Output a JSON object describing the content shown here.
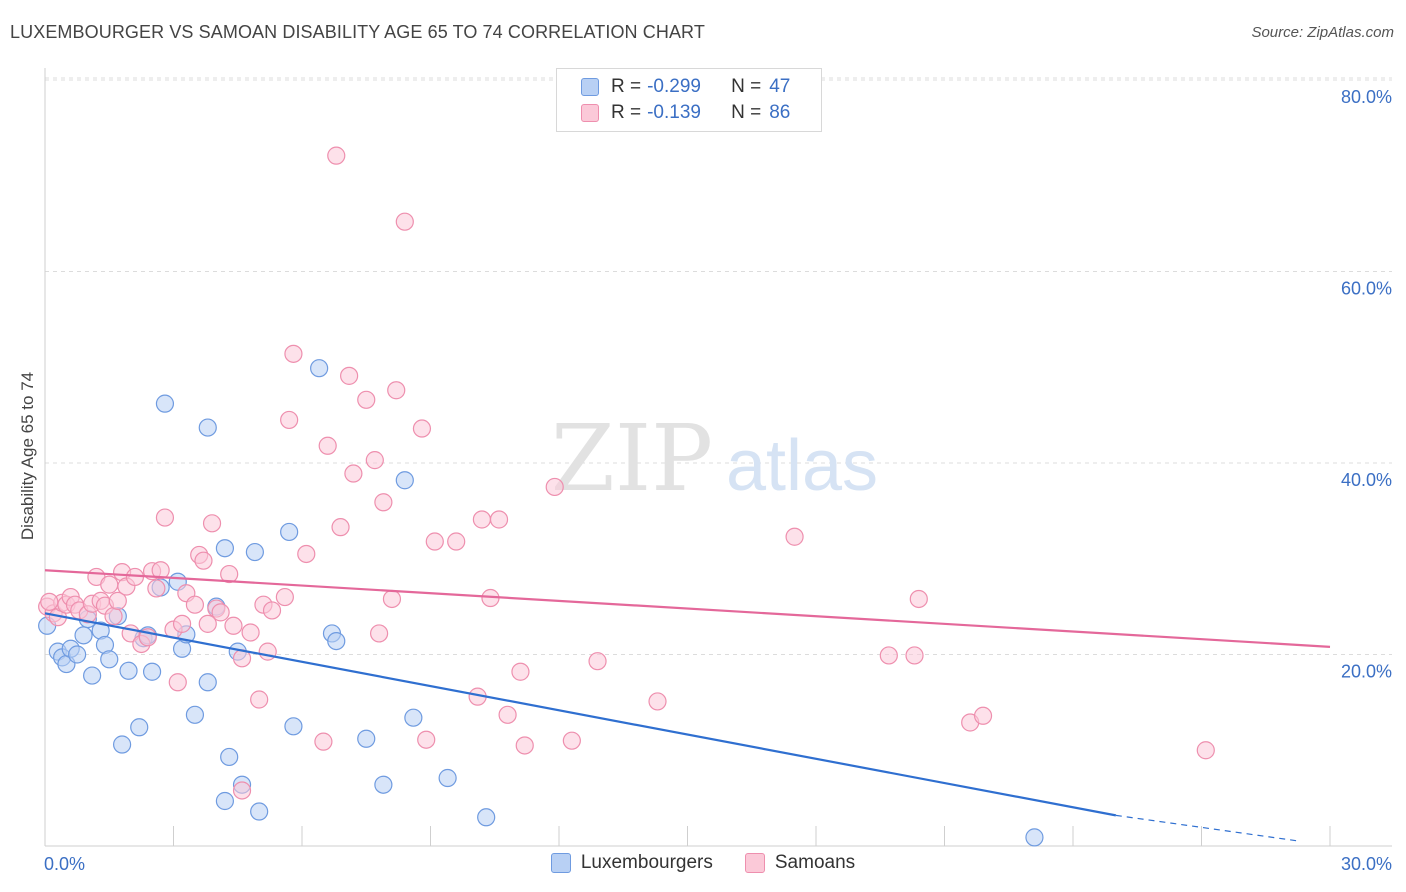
{
  "title": "LUXEMBOURGER VS SAMOAN DISABILITY AGE 65 TO 74 CORRELATION CHART",
  "source": "Source: ZipAtlas.com",
  "watermark": {
    "zip": "ZIP",
    "atlas": "atlas"
  },
  "legend": {
    "r_label": "R =",
    "n_label": "N =",
    "items": [
      {
        "r": "-0.299",
        "n": "47",
        "fill": "#b8d0f4",
        "stroke": "#6f9be0"
      },
      {
        "r": "-0.139",
        "n": "86",
        "fill": "#fbc9d8",
        "stroke": "#ee8fae"
      }
    ]
  },
  "chart_data": {
    "type": "scatter",
    "title": "LUXEMBOURGER VS SAMOAN DISABILITY AGE 65 TO 74 CORRELATION CHART",
    "xlabel": "",
    "ylabel": "Disability Age 65 to 74",
    "xlim": [
      0,
      30
    ],
    "ylim": [
      0,
      82
    ],
    "x_tick_labels": [
      {
        "value": 0,
        "label": "0.0%"
      },
      {
        "value": 30,
        "label": "30.0%"
      }
    ],
    "y_tick_labels": [
      {
        "value": 20,
        "label": "20.0%"
      },
      {
        "value": 40,
        "label": "40.0%"
      },
      {
        "value": 60,
        "label": "60.0%"
      },
      {
        "value": 80,
        "label": "80.0%"
      }
    ],
    "grid": true,
    "legend_position": "top-center",
    "series": [
      {
        "name": "Luxembourgers",
        "color": "#6f9be0",
        "fill": "#b8d0f4",
        "line_color": "#2f6fd0",
        "trend": {
          "x": [
            0,
            25
          ],
          "y": [
            24.3,
            3.2
          ],
          "dashed_to": [
            29.3,
            0.5
          ]
        },
        "points": [
          [
            0.05,
            23.0
          ],
          [
            0.3,
            20.3
          ],
          [
            0.4,
            19.7
          ],
          [
            0.5,
            19.0
          ],
          [
            0.6,
            20.6
          ],
          [
            0.75,
            20.0
          ],
          [
            0.9,
            22.0
          ],
          [
            1.0,
            23.7
          ],
          [
            1.1,
            17.8
          ],
          [
            1.3,
            22.5
          ],
          [
            1.4,
            21.0
          ],
          [
            1.5,
            19.5
          ],
          [
            1.7,
            24.0
          ],
          [
            1.8,
            10.6
          ],
          [
            1.95,
            18.3
          ],
          [
            2.2,
            12.4
          ],
          [
            2.3,
            21.7
          ],
          [
            2.4,
            22.0
          ],
          [
            2.5,
            18.2
          ],
          [
            2.7,
            27.0
          ],
          [
            2.8,
            46.2
          ],
          [
            3.1,
            27.6
          ],
          [
            3.2,
            20.6
          ],
          [
            3.3,
            22.1
          ],
          [
            3.5,
            13.7
          ],
          [
            3.8,
            43.7
          ],
          [
            3.8,
            17.1
          ],
          [
            4.0,
            25.0
          ],
          [
            4.2,
            31.1
          ],
          [
            4.3,
            9.3
          ],
          [
            4.6,
            6.4
          ],
          [
            4.5,
            20.3
          ],
          [
            4.2,
            4.7
          ],
          [
            4.9,
            30.7
          ],
          [
            5.0,
            3.6
          ],
          [
            5.7,
            32.8
          ],
          [
            5.8,
            12.5
          ],
          [
            6.4,
            49.9
          ],
          [
            6.7,
            22.2
          ],
          [
            6.8,
            21.4
          ],
          [
            7.5,
            11.2
          ],
          [
            7.9,
            6.4
          ],
          [
            8.4,
            38.2
          ],
          [
            8.6,
            13.4
          ],
          [
            9.4,
            7.1
          ],
          [
            10.3,
            3.0
          ],
          [
            23.1,
            0.9
          ]
        ]
      },
      {
        "name": "Samoans",
        "color": "#ee8fae",
        "fill": "#fbc9d8",
        "line_color": "#e4689a",
        "trend": {
          "x": [
            0,
            30
          ],
          "y": [
            28.8,
            20.8
          ]
        },
        "points": [
          [
            0.05,
            25.0
          ],
          [
            0.2,
            24.3
          ],
          [
            0.3,
            23.9
          ],
          [
            0.4,
            25.4
          ],
          [
            0.5,
            25.2
          ],
          [
            0.6,
            26.0
          ],
          [
            0.7,
            25.2
          ],
          [
            0.8,
            24.6
          ],
          [
            1.0,
            24.2
          ],
          [
            1.1,
            25.3
          ],
          [
            1.2,
            28.1
          ],
          [
            1.3,
            25.6
          ],
          [
            1.4,
            25.1
          ],
          [
            1.5,
            27.3
          ],
          [
            1.6,
            24.0
          ],
          [
            1.7,
            25.6
          ],
          [
            1.8,
            28.6
          ],
          [
            1.9,
            27.1
          ],
          [
            2.0,
            22.2
          ],
          [
            2.1,
            28.1
          ],
          [
            2.25,
            21.1
          ],
          [
            2.4,
            21.8
          ],
          [
            2.5,
            28.7
          ],
          [
            2.6,
            26.9
          ],
          [
            2.7,
            28.8
          ],
          [
            2.8,
            34.3
          ],
          [
            3.0,
            22.6
          ],
          [
            3.1,
            17.1
          ],
          [
            3.2,
            23.2
          ],
          [
            3.3,
            26.4
          ],
          [
            3.5,
            25.2
          ],
          [
            3.6,
            30.4
          ],
          [
            3.7,
            29.8
          ],
          [
            3.8,
            23.2
          ],
          [
            3.9,
            33.7
          ],
          [
            4.0,
            24.8
          ],
          [
            4.1,
            24.4
          ],
          [
            4.3,
            28.4
          ],
          [
            4.4,
            23.0
          ],
          [
            4.6,
            5.8
          ],
          [
            4.6,
            19.6
          ],
          [
            4.8,
            22.3
          ],
          [
            5.0,
            15.3
          ],
          [
            5.1,
            25.2
          ],
          [
            5.2,
            20.3
          ],
          [
            5.3,
            24.6
          ],
          [
            5.6,
            26.0
          ],
          [
            5.7,
            44.5
          ],
          [
            5.8,
            51.4
          ],
          [
            6.1,
            30.5
          ],
          [
            6.5,
            10.9
          ],
          [
            6.6,
            41.8
          ],
          [
            6.8,
            72.1
          ],
          [
            6.9,
            33.3
          ],
          [
            7.1,
            49.1
          ],
          [
            7.2,
            38.9
          ],
          [
            7.5,
            46.6
          ],
          [
            7.7,
            40.3
          ],
          [
            7.8,
            22.2
          ],
          [
            7.9,
            35.9
          ],
          [
            8.1,
            25.8
          ],
          [
            8.2,
            47.6
          ],
          [
            8.4,
            65.2
          ],
          [
            8.8,
            43.6
          ],
          [
            8.9,
            11.1
          ],
          [
            9.1,
            31.8
          ],
          [
            9.6,
            31.8
          ],
          [
            10.1,
            15.6
          ],
          [
            10.2,
            34.1
          ],
          [
            10.4,
            25.9
          ],
          [
            10.6,
            34.1
          ],
          [
            10.8,
            13.7
          ],
          [
            11.1,
            18.2
          ],
          [
            11.2,
            10.5
          ],
          [
            11.9,
            37.5
          ],
          [
            12.3,
            11.0
          ],
          [
            12.9,
            19.3
          ],
          [
            14.3,
            15.1
          ],
          [
            17.5,
            32.3
          ],
          [
            19.7,
            19.9
          ],
          [
            20.3,
            19.9
          ],
          [
            20.4,
            25.8
          ],
          [
            21.6,
            12.9
          ],
          [
            21.9,
            13.6
          ],
          [
            27.1,
            10.0
          ],
          [
            0.1,
            25.5
          ]
        ]
      }
    ]
  },
  "bottom_legend": [
    "Luxembourgers",
    "Samoans"
  ]
}
